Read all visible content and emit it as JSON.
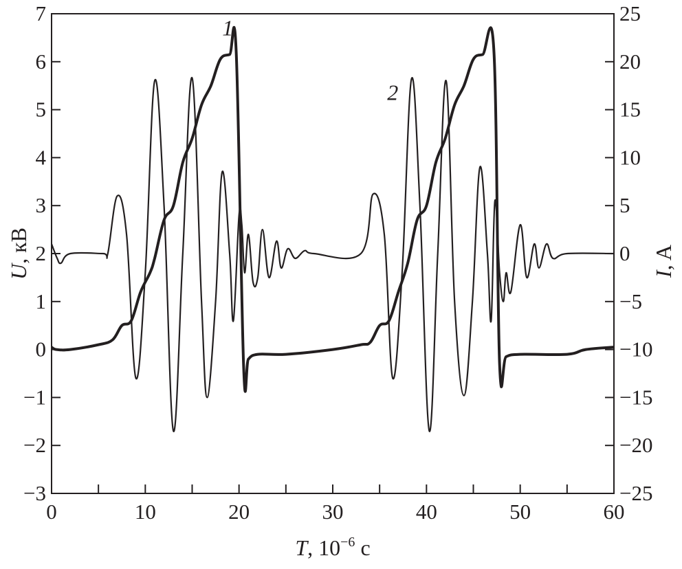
{
  "chart_data": {
    "type": "line",
    "title": "",
    "xlabel": "T, 10⁻⁶ с",
    "xlabel_main": "T",
    "xlabel_unit_pre": ", 10",
    "xlabel_exp": "−6",
    "xlabel_unit_post": " с",
    "ylabel_left": "U, кВ",
    "ylabel_left_var": "U",
    "ylabel_left_unit": ", кВ",
    "ylabel_right": "I, A",
    "ylabel_right_var": "I",
    "ylabel_right_unit": ", A",
    "xlim": [
      0,
      60
    ],
    "ylim_left": [
      -3,
      7
    ],
    "ylim_right": [
      -25,
      25
    ],
    "x_ticks": [
      "0",
      "10",
      "20",
      "30",
      "40",
      "50",
      "60"
    ],
    "y_left_ticks": [
      "−3",
      "−2",
      "−1",
      "0",
      "1",
      "2",
      "3",
      "4",
      "5",
      "6",
      "7"
    ],
    "y_right_ticks": [
      "−25",
      "−20",
      "−15",
      "−10",
      "−5",
      "0",
      "5",
      "10",
      "15",
      "20",
      "25"
    ],
    "grid": false,
    "line_color": "#231f20",
    "series": [
      {
        "name": "1",
        "axis": "left",
        "style": "thick",
        "x": [
          0,
          0.5,
          2,
          5,
          6.5,
          7.5,
          8.5,
          9.5,
          10.5,
          11,
          12,
          13,
          14,
          15,
          16,
          17,
          18,
          19,
          19.7,
          20.5,
          21,
          22,
          25,
          30,
          33,
          34,
          35,
          36,
          37,
          38,
          39,
          40,
          41,
          42,
          43,
          44,
          45,
          46,
          47.2,
          47.8,
          48.5,
          50,
          55,
          57,
          60
        ],
        "y": [
          0.05,
          0,
          0,
          0.1,
          0.2,
          0.5,
          0.6,
          1.2,
          1.6,
          1.9,
          2.7,
          3.0,
          3.9,
          4.4,
          5.1,
          5.5,
          6.05,
          6.15,
          6.2,
          -0.4,
          -0.2,
          -0.1,
          -0.1,
          0.0,
          0.1,
          0.15,
          0.5,
          0.6,
          1.2,
          1.8,
          2.7,
          3.0,
          3.9,
          4.4,
          5.1,
          5.5,
          6.05,
          6.15,
          6.2,
          -0.3,
          -0.15,
          -0.1,
          -0.1,
          0.0,
          0.05
        ]
      },
      {
        "name": "2",
        "axis": "right",
        "style": "thin",
        "x": [
          0,
          0.6,
          1,
          2,
          5.5,
          6,
          7,
          8,
          9,
          10,
          11,
          12,
          13,
          14,
          15,
          16,
          16.6,
          17.5,
          18.2,
          19,
          19.4,
          20,
          20.3,
          20.6,
          21,
          21.5,
          22,
          22.5,
          23.2,
          24,
          24.5,
          25.2,
          26,
          27,
          28,
          33,
          34.3,
          35.5,
          36.4,
          37.4,
          38.4,
          39.3,
          40.3,
          41.2,
          42.1,
          43,
          44,
          44.9,
          45.7,
          46.5,
          46.9,
          47.3,
          47.8,
          48.2,
          48.5,
          49,
          50,
          50.7,
          51.5,
          52,
          52.8,
          53.5,
          55,
          60
        ],
        "y": [
          1,
          -0.5,
          -1,
          0,
          0,
          0,
          6,
          2,
          -13,
          -2,
          18,
          5,
          -18.5,
          0,
          18.3,
          -5,
          -15,
          -5,
          8.5,
          0,
          -7,
          4,
          3,
          -2,
          2,
          -3,
          -2.5,
          2.5,
          -2.5,
          1.3,
          -1.5,
          0.5,
          -0.5,
          0.3,
          0,
          0,
          6.2,
          2,
          -13,
          -2,
          18.2,
          5,
          -18.5,
          0,
          18,
          -5,
          -14.8,
          -5,
          9,
          0,
          -7,
          5.5,
          -2,
          -5,
          -2,
          -4,
          3,
          -2.5,
          1,
          -1.5,
          1,
          -0.5,
          0,
          0
        ]
      }
    ],
    "annotations": [
      {
        "text": "1",
        "x": 18.8,
        "y_left": 6.55
      },
      {
        "text": "2",
        "x": 36.4,
        "y_left": 5.2
      }
    ]
  }
}
